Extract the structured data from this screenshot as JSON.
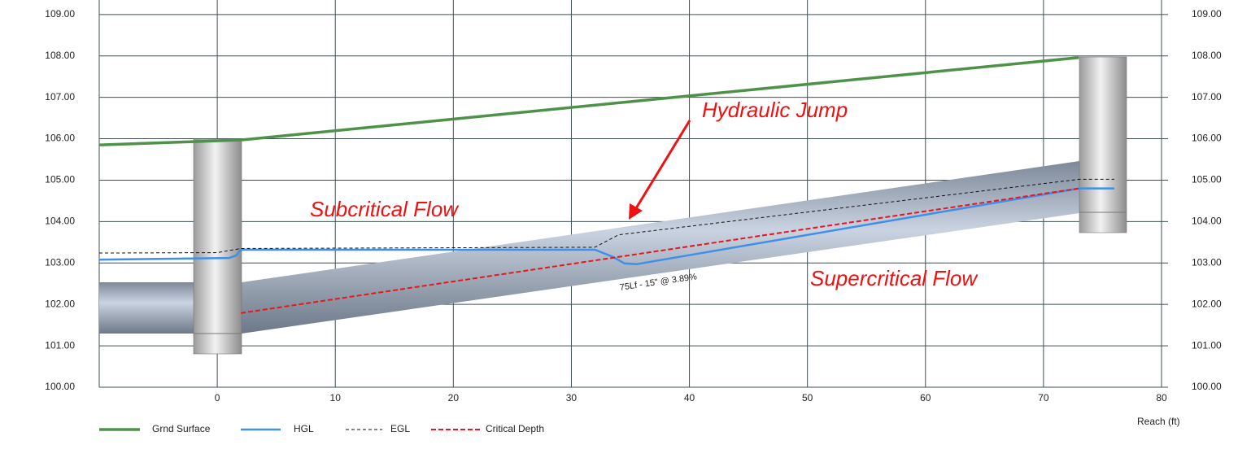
{
  "chart_data": {
    "type": "line",
    "xlabel": "Reach (ft)",
    "xlim": [
      -10,
      80
    ],
    "xticks": [
      0,
      10,
      20,
      30,
      40,
      50,
      60,
      70,
      80
    ],
    "ylim": [
      100,
      109.35
    ],
    "yticks": [
      {
        "value": 100,
        "label": "100.00"
      },
      {
        "value": 101,
        "label": "101.00"
      },
      {
        "value": 102,
        "label": "102.00"
      },
      {
        "value": 103,
        "label": "103.00"
      },
      {
        "value": 104,
        "label": "104.00"
      },
      {
        "value": 105,
        "label": "105.00"
      },
      {
        "value": 106,
        "label": "106.00"
      },
      {
        "value": 107,
        "label": "107.00"
      },
      {
        "value": 108,
        "label": "108.00"
      },
      {
        "value": 109,
        "label": "109.00"
      }
    ],
    "y2lim": [
      100,
      109.35
    ],
    "y2ticks": [
      {
        "value": 100,
        "label": "100.00"
      },
      {
        "value": 101,
        "label": "101.00"
      },
      {
        "value": 102,
        "label": "102.00"
      },
      {
        "value": 103,
        "label": "103.00"
      },
      {
        "value": 104,
        "label": "104.00"
      },
      {
        "value": 105,
        "label": "105.00"
      },
      {
        "value": 106,
        "label": "106.00"
      },
      {
        "value": 107,
        "label": "107.00"
      },
      {
        "value": 108,
        "label": "108.00"
      },
      {
        "value": 109,
        "label": "109.00"
      }
    ],
    "grid": true,
    "legend": "bottom-left",
    "series": [
      {
        "name": "Grnd Surface",
        "color": "#4e9148",
        "dash": false,
        "width": 3.5,
        "x": [
          -10,
          2,
          73
        ],
        "values": [
          105.85,
          105.97,
          107.96
        ]
      },
      {
        "name": "HGL",
        "color": "#3d8fe8",
        "dash": false,
        "width": 2.5,
        "x": [
          -10,
          1,
          1.6,
          2,
          32,
          33.5,
          34.5,
          35.5,
          73,
          76
        ],
        "values": [
          103.08,
          103.12,
          103.18,
          103.32,
          103.32,
          103.15,
          102.99,
          102.97,
          104.8,
          104.8
        ]
      },
      {
        "name": "EGL",
        "color": "#111111",
        "dash": true,
        "width": 1,
        "x": [
          -10,
          0,
          2,
          32,
          34,
          73,
          76
        ],
        "values": [
          103.24,
          103.25,
          103.35,
          103.38,
          103.68,
          105.02,
          105.02
        ]
      },
      {
        "name": "Critical Depth",
        "color": "#e8161c",
        "dash": true,
        "width": 2,
        "x": [
          2,
          73
        ],
        "values": [
          101.79,
          104.8
        ]
      }
    ],
    "annotations": [
      "Hydraulic Jump",
      "Subcritical Flow",
      "Supercritical Flow",
      "75Lf - 15\" @ 3.89%"
    ]
  }
}
